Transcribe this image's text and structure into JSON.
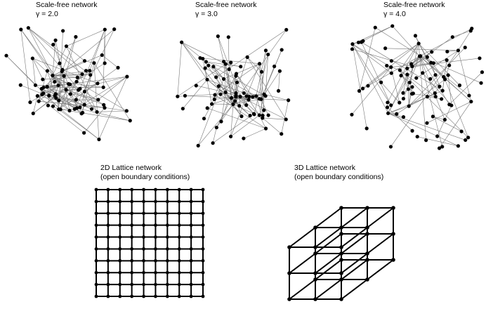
{
  "panels": {
    "sf1": {
      "title": "Scale-free network",
      "param": "γ = 2.0"
    },
    "sf2": {
      "title": "Scale-free network",
      "param": "γ = 3.0"
    },
    "sf3": {
      "title": "Scale-free network",
      "param": "γ = 4.0"
    },
    "lat2d": {
      "title": "2D Lattice network",
      "subtitle": "(open boundary conditions)",
      "grid_nodes": 10
    },
    "lat3d": {
      "title": "3D Lattice network",
      "subtitle": "(open boundary conditions)",
      "grid_nodes": 3
    }
  },
  "colors": {
    "node": "#000000",
    "edge_sf": "#777777",
    "edge_lattice": "#000000",
    "background": "#ffffff"
  }
}
